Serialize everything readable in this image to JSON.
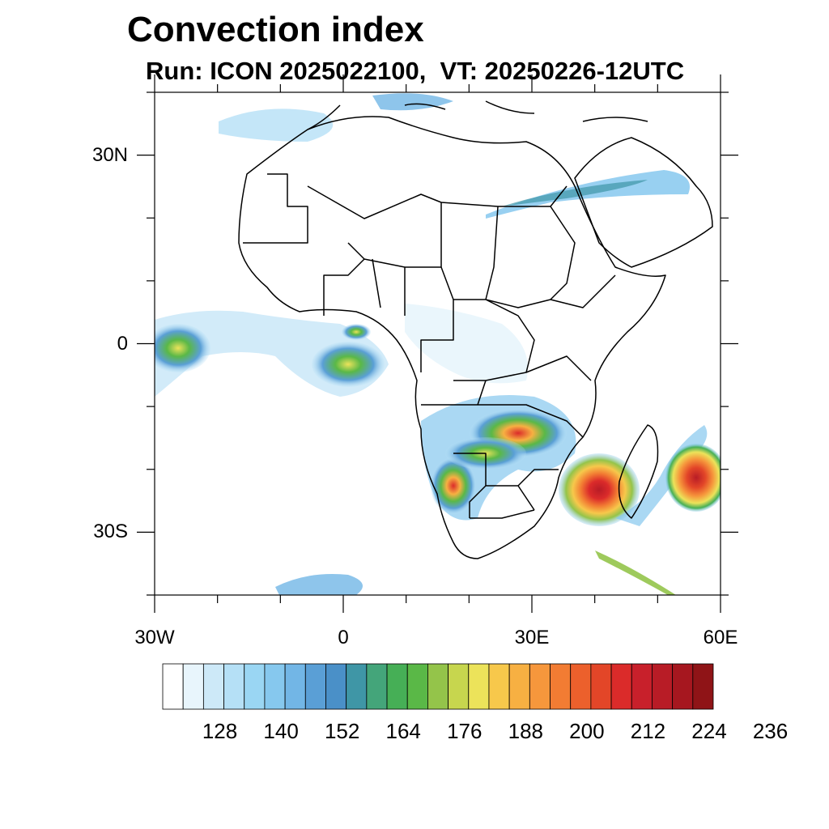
{
  "title": "Convection index",
  "subtitle": "Run: ICON 2025022100,  VT: 20250226-12UTC",
  "map": {
    "lon_range": [
      -30,
      60
    ],
    "lat_range": [
      -40,
      40
    ],
    "lat_ticks": [
      {
        "value": 30,
        "label": "30N"
      },
      {
        "value": 0,
        "label": "0"
      },
      {
        "value": -30,
        "label": "30S"
      }
    ],
    "lon_ticks": [
      {
        "value": -30,
        "label": "30W"
      },
      {
        "value": 0,
        "label": "0"
      },
      {
        "value": 30,
        "label": "30E"
      },
      {
        "value": 60,
        "label": "60E"
      }
    ]
  },
  "colorbar": {
    "colors": [
      "#ffffff",
      "#e8f5fc",
      "#cde9f8",
      "#b5e0f6",
      "#9ad6f3",
      "#86c8ee",
      "#72b6e6",
      "#5a9fd6",
      "#4a90c8",
      "#3f96a6",
      "#44a57a",
      "#46af56",
      "#5ab847",
      "#94c44a",
      "#c7d64e",
      "#ece35a",
      "#f7c84b",
      "#f7b042",
      "#f6973c",
      "#f27c33",
      "#ec602c",
      "#e34628",
      "#db2b2a",
      "#c8202b",
      "#b81c26",
      "#a6171f",
      "#8f1417"
    ],
    "labels": [
      "128",
      "140",
      "152",
      "164",
      "176",
      "188",
      "200",
      "212",
      "224",
      "236"
    ]
  }
}
